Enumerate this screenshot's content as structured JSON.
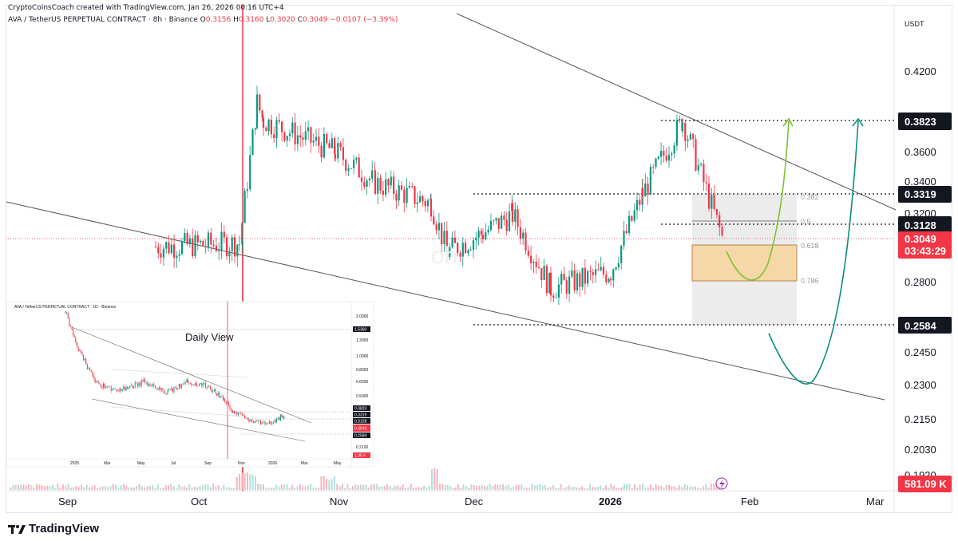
{
  "header": {
    "credit": "CryptoCoinsCoach created with TradingView.com, Jan 26, 2026 00:16 UTC+4",
    "symbol": "AVA / TetherUS PERPETUAL CONTRACT · 8h · Binance",
    "ohlc": [
      {
        "label": "O",
        "value": "0.3156"
      },
      {
        "label": "H",
        "value": "0.3160"
      },
      {
        "label": "L",
        "value": "0.3020"
      },
      {
        "label": "C",
        "value": "0.3049"
      }
    ],
    "change": "−0.0107 (−3.39%)"
  },
  "currency": "USDT",
  "footer": {
    "brand": "TradingView"
  },
  "colors": {
    "up": "#089981",
    "down": "#f23645",
    "dark_badge": "#131722",
    "fib_orange": "#f5d7a8",
    "fib_gray": "#e6e6e6",
    "green_arrow": "#7ec132",
    "teal_arrow": "#0b8f7f"
  },
  "chart_data": {
    "type": "candlestick",
    "timeframe": "8h",
    "y_axis": {
      "scale": "log",
      "ticks": [
        "0.4200",
        "0.3600",
        "0.3400",
        "0.3200",
        "0.2800",
        "0.2450",
        "0.2300",
        "0.2150",
        "0.2030",
        "0.1920"
      ]
    },
    "x_axis": {
      "ticks": [
        "Sep",
        "Oct",
        "Nov",
        "Dec",
        "2026",
        "Feb",
        "Mar"
      ]
    },
    "price_path": [
      [
        "Sep",
        0.3
      ],
      [
        "Oct",
        0.302
      ],
      [
        "Oct",
        0.395
      ],
      [
        "Oct",
        0.382
      ],
      [
        "Nov",
        0.36
      ],
      [
        "Nov",
        0.339
      ],
      [
        "Nov",
        0.326
      ],
      [
        "Nov",
        0.297
      ],
      [
        "Dec",
        0.308
      ],
      [
        "Dec",
        0.319
      ],
      [
        "Dec",
        0.277
      ],
      [
        "2026",
        0.286
      ],
      [
        "2026",
        0.332
      ],
      [
        "2026",
        0.3823
      ],
      [
        "2026",
        0.3049
      ]
    ],
    "levels": [
      {
        "label": "0.3823",
        "value": 0.3823,
        "color": "#131722"
      },
      {
        "label": "0.3319",
        "value": 0.3319,
        "color": "#131722"
      },
      {
        "label": "0.3128",
        "value": 0.3128,
        "color": "#131722"
      },
      {
        "label": "0.3049",
        "value": 0.3049,
        "color": "#f23645",
        "sub": "03:43:29"
      },
      {
        "label": "0.2584",
        "value": 0.2584,
        "color": "#131722"
      }
    ],
    "fib_levels": [
      "0.382",
      "0.5",
      "0.618",
      "0.786"
    ],
    "volume_badge": "581.09 K",
    "inset": {
      "title": "Daily View",
      "header": "AVA / TetherUS PERPETUAL CONTRACT · 1D · Binance",
      "y_ticks": [
        "2.0000",
        "1.3000",
        "1.0000",
        "0.8000",
        "0.6500",
        "0.5000",
        "0.2100"
      ],
      "x_ticks": [
        "2025",
        "Mar",
        "May",
        "Jul",
        "Sep",
        "Nov",
        "2026",
        "Mar",
        "May"
      ],
      "badges": [
        {
          "label": "1.5360",
          "color": "#131722"
        },
        {
          "label": "0.3823",
          "color": "#131722"
        },
        {
          "label": "0.3319",
          "color": "#131722"
        },
        {
          "label": "0.3128",
          "color": "#131722"
        },
        {
          "label": "0.3049",
          "color": "#f23645"
        },
        {
          "label": "0.2584",
          "color": "#131722"
        },
        {
          "label": "1.05 K",
          "color": "#f23645"
        }
      ]
    }
  }
}
